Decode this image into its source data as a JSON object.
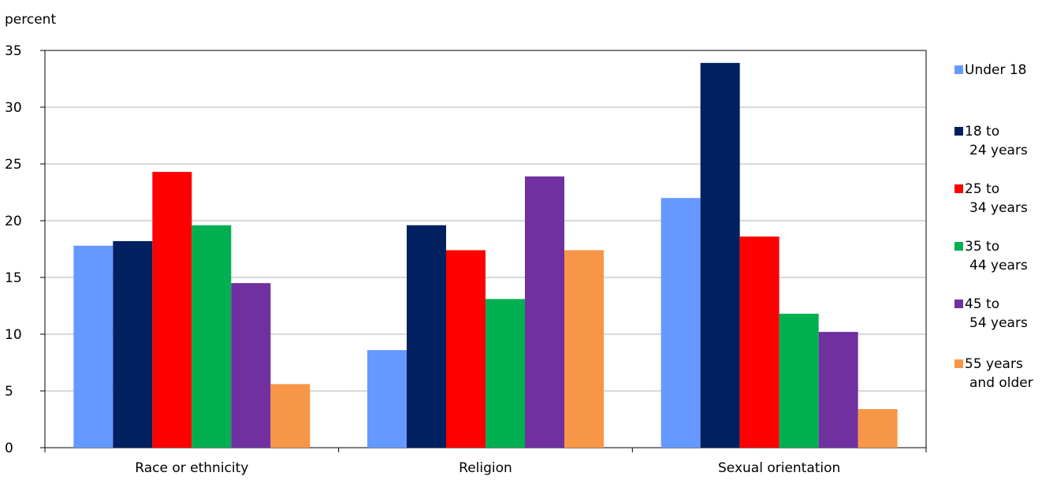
{
  "chart_data": {
    "type": "bar",
    "ylabel": "percent",
    "xlabel": "",
    "title": "",
    "ylim": [
      0,
      35
    ],
    "yticks": [
      0,
      5,
      10,
      15,
      20,
      25,
      30,
      35
    ],
    "categories": [
      "Race or ethnicity",
      "Religion",
      "Sexual orientation"
    ],
    "series": [
      {
        "name": "Under 18",
        "legend_lines": [
          "Under 18"
        ],
        "color": "#6699FF",
        "values": [
          17.8,
          8.6,
          22.0
        ]
      },
      {
        "name": "18 to 24 years",
        "legend_lines": [
          "18 to",
          "24 years"
        ],
        "color": "#002060",
        "values": [
          18.2,
          19.6,
          33.9
        ]
      },
      {
        "name": "25 to 34 years",
        "legend_lines": [
          "25 to",
          "34 years"
        ],
        "color": "#FF0000",
        "values": [
          24.3,
          17.4,
          18.6
        ]
      },
      {
        "name": "35 to 44 years",
        "legend_lines": [
          "35 to",
          "44 years"
        ],
        "color": "#00B050",
        "values": [
          19.6,
          13.1,
          11.8
        ]
      },
      {
        "name": "45 to 54 years",
        "legend_lines": [
          "45 to",
          "54 years"
        ],
        "color": "#7030A0",
        "values": [
          14.5,
          23.9,
          10.2
        ]
      },
      {
        "name": "55 years and older",
        "legend_lines": [
          "55 years",
          "and older"
        ],
        "color": "#F79646",
        "values": [
          5.6,
          17.4,
          3.4
        ]
      }
    ],
    "grid": true,
    "legend_position": "right"
  }
}
